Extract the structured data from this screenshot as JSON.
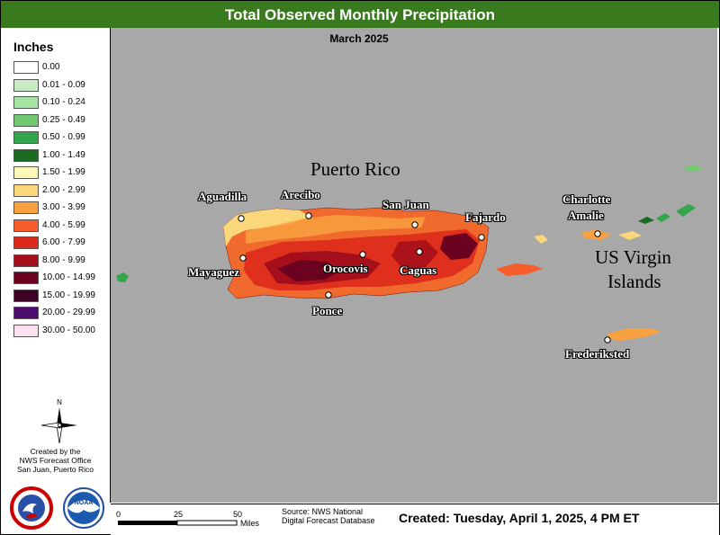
{
  "title": "Total Observed Monthly Precipitation",
  "subtitle": "March 2025",
  "legend": {
    "title": "Inches",
    "items": [
      {
        "label": "0.00",
        "color": "#ffffff"
      },
      {
        "label": "0.01 - 0.09",
        "color": "#c7ecc4"
      },
      {
        "label": "0.10 - 0.24",
        "color": "#a6e4a4"
      },
      {
        "label": "0.25 - 0.49",
        "color": "#73c872"
      },
      {
        "label": "0.50 - 0.99",
        "color": "#33a54a"
      },
      {
        "label": "1.00 - 1.49",
        "color": "#1a6b1f"
      },
      {
        "label": "1.50 - 1.99",
        "color": "#fdf8b5"
      },
      {
        "label": "2.00 - 2.99",
        "color": "#fbd77c"
      },
      {
        "label": "3.00 - 3.99",
        "color": "#f9a041"
      },
      {
        "label": "4.00 - 5.99",
        "color": "#f65d2c"
      },
      {
        "label": "6.00 - 7.99",
        "color": "#db2a1c"
      },
      {
        "label": "8.00 - 9.99",
        "color": "#a50f1b"
      },
      {
        "label": "10.00 - 14.99",
        "color": "#6b0320"
      },
      {
        "label": "15.00 - 19.99",
        "color": "#3e0125"
      },
      {
        "label": "20.00 - 29.99",
        "color": "#4b0c6b"
      },
      {
        "label": "30.00 - 50.00",
        "color": "#fde0f2"
      }
    ]
  },
  "compass": {
    "north": "N"
  },
  "credit": [
    "Created by the",
    "NWS Forecast Office",
    "San Juan, Puerto Rico"
  ],
  "logos": {
    "nws": "NATIONAL WEATHER SERVICE",
    "noaa": "NOAA"
  },
  "map": {
    "region_labels": {
      "puerto_rico": "Puerto Rico",
      "usvi_line1": "US Virgin",
      "usvi_line2": "Islands"
    },
    "cities": [
      "Aguadilla",
      "Arecibo",
      "San Juan",
      "Fajardo",
      "Charlotte",
      "Amalie",
      "Mayaguez",
      "Orocovis",
      "Caguas",
      "Ponce",
      "Frederiksted"
    ]
  },
  "scale": {
    "ticks": [
      "0",
      "25",
      "50"
    ],
    "unit": "Miles"
  },
  "source": [
    "Source: NWS National",
    "Digital Forecast Database"
  ],
  "created": "Created:  Tuesday, April 1, 2025, 4 PM ET"
}
